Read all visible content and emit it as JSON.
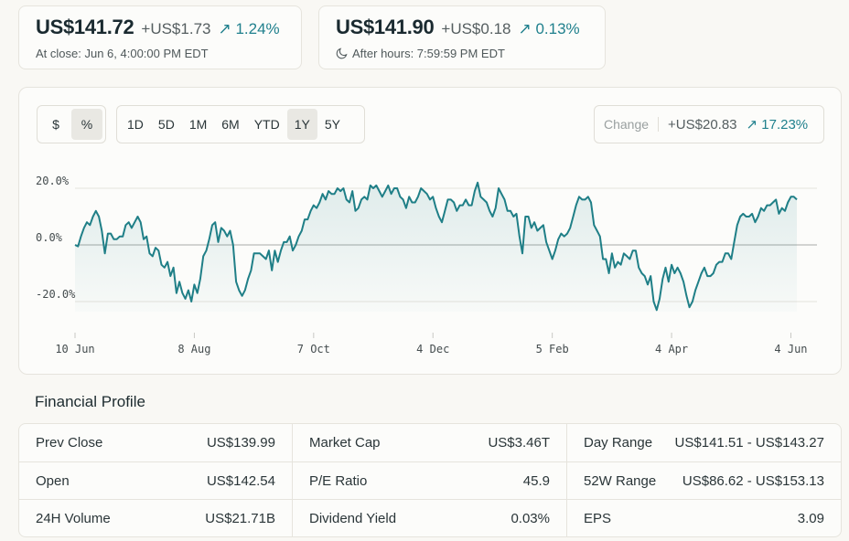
{
  "close_quote": {
    "price": "US$141.72",
    "change": "+US$1.73",
    "percent": "↗ 1.24%",
    "subtitle": "At close: Jun 6, 4:00:00 PM EDT"
  },
  "after_hours_quote": {
    "price": "US$141.90",
    "change": "+US$0.18",
    "percent": "↗ 0.13%",
    "subtitle": "After hours: 7:59:59 PM EDT",
    "icon": "moon-icon"
  },
  "chart_controls": {
    "modes": [
      {
        "label": "$",
        "active": false
      },
      {
        "label": "%",
        "active": true
      }
    ],
    "ranges": [
      {
        "label": "1D",
        "active": false
      },
      {
        "label": "5D",
        "active": false
      },
      {
        "label": "1M",
        "active": false
      },
      {
        "label": "6M",
        "active": false
      },
      {
        "label": "YTD",
        "active": false
      },
      {
        "label": "1Y",
        "active": true
      },
      {
        "label": "5Y",
        "active": false
      }
    ],
    "change_label": "Change",
    "change_value": "+US$20.83",
    "change_percent": "↗ 17.23%"
  },
  "colors": {
    "line": "#1f7f87",
    "accent": "#20808d",
    "grid": "#e5e3dc",
    "zero_line": "#a8aaa8"
  },
  "chart_data": {
    "type": "line",
    "ylim": [
      -25,
      22
    ],
    "yticks": [
      {
        "label": "20.0%",
        "value": 20
      },
      {
        "label": "0.0%",
        "value": 0
      },
      {
        "label": "-20.0%",
        "value": -20
      }
    ],
    "xticks": [
      {
        "label": "10 Jun",
        "index": 0
      },
      {
        "label": "8 Aug",
        "index": 40
      },
      {
        "label": "7 Oct",
        "index": 80
      },
      {
        "label": "4 Dec",
        "index": 120
      },
      {
        "label": "5 Feb",
        "index": 160
      },
      {
        "label": "4 Apr",
        "index": 200
      },
      {
        "label": "4 Jun",
        "index": 240
      }
    ],
    "series": [
      {
        "values": [
          0.0,
          -0.5,
          3,
          6,
          8,
          7,
          10,
          12,
          10,
          5,
          -3,
          4,
          4,
          2,
          2,
          3,
          3,
          7,
          8,
          6,
          8,
          10,
          8,
          2,
          3,
          -3,
          -4,
          -1,
          -2,
          -7,
          -8,
          -6,
          -11,
          -8,
          -17,
          -13,
          -17,
          -19,
          -16,
          -20,
          -14,
          -17,
          -12,
          -4,
          -2,
          2,
          7,
          8,
          1,
          6,
          5,
          3,
          5,
          0,
          -13,
          -16,
          -18,
          -16,
          -12,
          -9,
          -3,
          -3,
          -3,
          -4,
          -5,
          -2,
          -9,
          -2,
          -6,
          -2,
          1,
          1,
          3,
          -2,
          0,
          3,
          5,
          9,
          9,
          12,
          14,
          13,
          15,
          18,
          16,
          19,
          18,
          18,
          20,
          19,
          20,
          16,
          15,
          19,
          12,
          13,
          16,
          17,
          16,
          21,
          20,
          21,
          19,
          17,
          19,
          21,
          18,
          20,
          20,
          17,
          16,
          13,
          17,
          15,
          15,
          17,
          20,
          19,
          18,
          16,
          17,
          13,
          10,
          8,
          12,
          16,
          16,
          15,
          12,
          14,
          14,
          16,
          14,
          14,
          19,
          22,
          17,
          16,
          15,
          12,
          10,
          13,
          20,
          18,
          16,
          12,
          12,
          10,
          11,
          3,
          -3,
          10,
          10,
          6,
          8,
          5,
          6,
          7,
          1,
          -2,
          -5,
          -2,
          2,
          4,
          3,
          4,
          6,
          10,
          14,
          17,
          16,
          16,
          17,
          15,
          7,
          5,
          3,
          -5,
          -5,
          -10,
          -3,
          -8,
          -6,
          -7,
          -3,
          -4,
          -5,
          -2,
          -2,
          -8,
          -10,
          -11,
          -14,
          -11,
          -20,
          -23,
          -19,
          -12,
          -8,
          -13,
          -7,
          -10,
          -8,
          -10,
          -13,
          -18,
          -22,
          -20,
          -16,
          -13,
          -10,
          -8,
          -11,
          -11,
          -10,
          -7,
          -6,
          -6,
          -3,
          -3,
          -5,
          1,
          7,
          10,
          11,
          10,
          10,
          11,
          8,
          10,
          13,
          12,
          14,
          14,
          15,
          16,
          11,
          13,
          12,
          15,
          17,
          17,
          16
        ]
      }
    ]
  },
  "financial_profile": {
    "title": "Financial Profile",
    "rows": [
      [
        {
          "label": "Prev Close",
          "value": "US$139.99"
        },
        {
          "label": "Market Cap",
          "value": "US$3.46T"
        },
        {
          "label": "Day Range",
          "value": "US$141.51 - US$143.27"
        }
      ],
      [
        {
          "label": "Open",
          "value": "US$142.54"
        },
        {
          "label": "P/E Ratio",
          "value": "45.9"
        },
        {
          "label": "52W Range",
          "value": "US$86.62 - US$153.13"
        }
      ],
      [
        {
          "label": "24H Volume",
          "value": "US$21.71B"
        },
        {
          "label": "Dividend Yield",
          "value": "0.03%"
        },
        {
          "label": "EPS",
          "value": "3.09"
        }
      ]
    ]
  }
}
